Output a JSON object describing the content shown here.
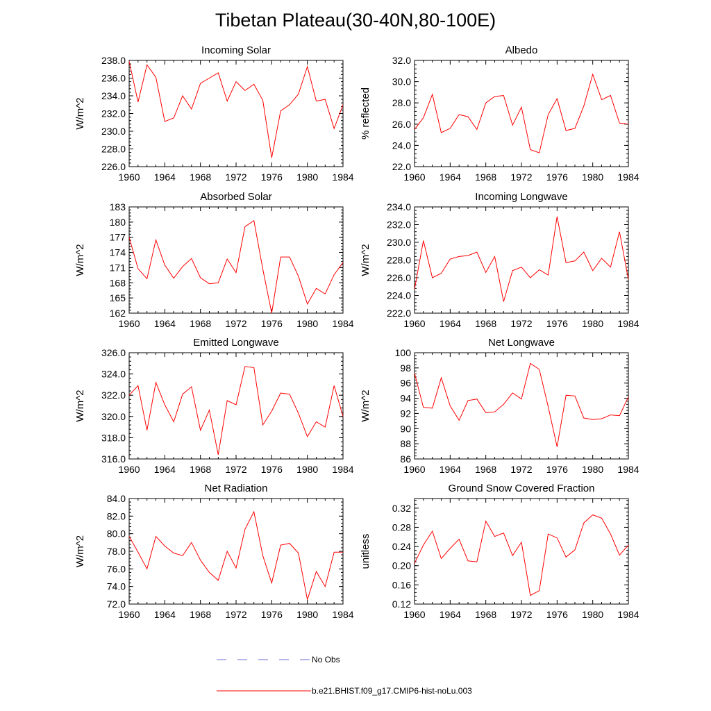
{
  "figure": {
    "title": "Tibetan Plateau(30-40N,80-100E)",
    "line_color": "#ff0000",
    "obs_color": "#6b6bd6"
  },
  "legend": {
    "obs_label": "No Obs",
    "model_label": "b.e21.BHIST.f09_g17.CMIP6-hist-noLu.003"
  },
  "chart_data": [
    {
      "type": "line",
      "title": "Incoming Solar",
      "ylabel": "W/m^2",
      "xlim": [
        1960,
        1984
      ],
      "ylim": [
        226,
        238
      ],
      "x_ticks": [
        "1960",
        "1964",
        "1968",
        "1972",
        "1976",
        "1980",
        "1984"
      ],
      "y_ticks": [
        "226.0",
        "228.0",
        "230.0",
        "232.0",
        "234.0",
        "236.0",
        "238.0"
      ],
      "x": [
        1960,
        1961,
        1962,
        1963,
        1964,
        1965,
        1966,
        1967,
        1968,
        1969,
        1970,
        1971,
        1972,
        1973,
        1974,
        1975,
        1976,
        1977,
        1978,
        1979,
        1980,
        1981,
        1982,
        1983,
        1984
      ],
      "values": [
        237.9,
        233.3,
        237.5,
        236.1,
        231.1,
        231.5,
        234.0,
        232.5,
        235.4,
        236.0,
        236.6,
        233.4,
        235.6,
        234.6,
        235.3,
        233.5,
        227.0,
        232.3,
        233.0,
        234.2,
        237.3,
        233.4,
        233.6,
        230.3,
        233.0
      ],
      "series": [
        {
          "name": "b.e21.BHIST.f09_g17.CMIP6-hist-noLu.003"
        }
      ]
    },
    {
      "type": "line",
      "title": "Albedo",
      "ylabel": "% reflected",
      "xlim": [
        1960,
        1984
      ],
      "ylim": [
        22,
        32
      ],
      "x_ticks": [
        "1960",
        "1964",
        "1968",
        "1972",
        "1976",
        "1980",
        "1984"
      ],
      "y_ticks": [
        "22.0",
        "24.0",
        "26.0",
        "28.0",
        "30.0",
        "32.0"
      ],
      "x": [
        1960,
        1961,
        1962,
        1963,
        1964,
        1965,
        1966,
        1967,
        1968,
        1969,
        1970,
        1971,
        1972,
        1973,
        1974,
        1975,
        1976,
        1977,
        1978,
        1979,
        1980,
        1981,
        1982,
        1983,
        1984
      ],
      "values": [
        25.5,
        26.6,
        28.8,
        25.2,
        25.6,
        26.9,
        26.7,
        25.5,
        28.0,
        28.6,
        28.7,
        25.9,
        27.6,
        23.6,
        23.3,
        26.9,
        28.4,
        25.4,
        25.6,
        27.7,
        30.7,
        28.3,
        28.7,
        26.1,
        26.0
      ],
      "series": [
        {
          "name": "b.e21.BHIST.f09_g17.CMIP6-hist-noLu.003"
        }
      ]
    },
    {
      "type": "line",
      "title": "Absorbed Solar",
      "ylabel": "W/m^2",
      "xlim": [
        1960,
        1984
      ],
      "ylim": [
        162,
        183
      ],
      "x_ticks": [
        "1960",
        "1964",
        "1968",
        "1972",
        "1976",
        "1980",
        "1984"
      ],
      "y_ticks": [
        "162",
        "165",
        "168",
        "171",
        "174",
        "177",
        "180",
        "183"
      ],
      "x": [
        1960,
        1961,
        1962,
        1963,
        1964,
        1965,
        1966,
        1967,
        1968,
        1969,
        1970,
        1971,
        1972,
        1973,
        1974,
        1975,
        1976,
        1977,
        1978,
        1979,
        1980,
        1981,
        1982,
        1983,
        1984
      ],
      "values": [
        177.0,
        170.8,
        168.8,
        176.5,
        171.5,
        168.9,
        171.2,
        172.8,
        169.0,
        167.8,
        168.0,
        172.7,
        170.0,
        179.1,
        180.3,
        170.7,
        162.0,
        173.1,
        173.1,
        169.3,
        163.8,
        166.9,
        165.8,
        169.6,
        172.0
      ],
      "series": [
        {
          "name": "b.e21.BHIST.f09_g17.CMIP6-hist-noLu.003"
        }
      ]
    },
    {
      "type": "line",
      "title": "Incoming Longwave",
      "ylabel": "W/m^2",
      "xlim": [
        1960,
        1984
      ],
      "ylim": [
        222,
        234
      ],
      "x_ticks": [
        "1960",
        "1964",
        "1968",
        "1972",
        "1976",
        "1980",
        "1984"
      ],
      "y_ticks": [
        "222.0",
        "224.0",
        "226.0",
        "228.0",
        "230.0",
        "232.0",
        "234.0"
      ],
      "x": [
        1960,
        1961,
        1962,
        1963,
        1964,
        1965,
        1966,
        1967,
        1968,
        1969,
        1970,
        1971,
        1972,
        1973,
        1974,
        1975,
        1976,
        1977,
        1978,
        1979,
        1980,
        1981,
        1982,
        1983,
        1984
      ],
      "values": [
        224.7,
        230.2,
        226.0,
        226.5,
        228.1,
        228.4,
        228.5,
        228.9,
        226.6,
        228.4,
        223.3,
        226.8,
        227.2,
        226.0,
        226.9,
        226.3,
        232.9,
        227.7,
        227.9,
        228.9,
        226.8,
        228.2,
        227.2,
        231.2,
        225.8
      ],
      "series": [
        {
          "name": "b.e21.BHIST.f09_g17.CMIP6-hist-noLu.003"
        }
      ]
    },
    {
      "type": "line",
      "title": "Emitted Longwave",
      "ylabel": "W/m^2",
      "xlim": [
        1960,
        1984
      ],
      "ylim": [
        316,
        326
      ],
      "x_ticks": [
        "1960",
        "1964",
        "1968",
        "1972",
        "1976",
        "1980",
        "1984"
      ],
      "y_ticks": [
        "316.0",
        "318.0",
        "320.0",
        "322.0",
        "324.0",
        "326.0"
      ],
      "x": [
        1960,
        1961,
        1962,
        1963,
        1964,
        1965,
        1966,
        1967,
        1968,
        1969,
        1970,
        1971,
        1972,
        1973,
        1974,
        1975,
        1976,
        1977,
        1978,
        1979,
        1980,
        1981,
        1982,
        1983,
        1984
      ],
      "values": [
        322.0,
        322.9,
        318.7,
        323.2,
        321.1,
        319.5,
        322.1,
        322.8,
        318.7,
        320.6,
        316.4,
        321.5,
        321.1,
        324.7,
        324.6,
        319.2,
        320.5,
        322.2,
        322.1,
        320.3,
        318.1,
        319.5,
        319.0,
        322.9,
        320.0
      ],
      "series": [
        {
          "name": "b.e21.BHIST.f09_g17.CMIP6-hist-noLu.003"
        }
      ]
    },
    {
      "type": "line",
      "title": "Net Longwave",
      "ylabel": "W/m^2",
      "xlim": [
        1960,
        1984
      ],
      "ylim": [
        86,
        100
      ],
      "x_ticks": [
        "1960",
        "1964",
        "1968",
        "1972",
        "1976",
        "1980",
        "1984"
      ],
      "y_ticks": [
        "86",
        "88",
        "90",
        "92",
        "94",
        "96",
        "98",
        "100"
      ],
      "x": [
        1960,
        1961,
        1962,
        1963,
        1964,
        1965,
        1966,
        1967,
        1968,
        1969,
        1970,
        1971,
        1972,
        1973,
        1974,
        1975,
        1976,
        1977,
        1978,
        1979,
        1980,
        1981,
        1982,
        1983,
        1984
      ],
      "values": [
        97.3,
        92.8,
        92.7,
        96.7,
        93.0,
        91.1,
        93.7,
        93.9,
        92.1,
        92.2,
        93.2,
        94.7,
        93.9,
        98.6,
        97.8,
        92.9,
        87.6,
        94.4,
        94.3,
        91.4,
        91.2,
        91.3,
        91.8,
        91.7,
        94.2
      ],
      "series": [
        {
          "name": "b.e21.BHIST.f09_g17.CMIP6-hist-noLu.003"
        }
      ]
    },
    {
      "type": "line",
      "title": "Net Radiation",
      "ylabel": "W/m^2",
      "xlim": [
        1960,
        1984
      ],
      "ylim": [
        72,
        84
      ],
      "x_ticks": [
        "1960",
        "1964",
        "1968",
        "1972",
        "1976",
        "1980",
        "1984"
      ],
      "y_ticks": [
        "72.0",
        "74.0",
        "76.0",
        "78.0",
        "80.0",
        "82.0",
        "84.0"
      ],
      "x": [
        1960,
        1961,
        1962,
        1963,
        1964,
        1965,
        1966,
        1967,
        1968,
        1969,
        1970,
        1971,
        1972,
        1973,
        1974,
        1975,
        1976,
        1977,
        1978,
        1979,
        1980,
        1981,
        1982,
        1983,
        1984
      ],
      "values": [
        79.7,
        77.9,
        76.0,
        79.7,
        78.6,
        77.8,
        77.5,
        79.0,
        77.0,
        75.6,
        74.7,
        78.0,
        76.1,
        80.5,
        82.5,
        77.5,
        74.4,
        78.7,
        78.9,
        77.8,
        72.5,
        75.7,
        74.0,
        77.9,
        77.9
      ],
      "series": [
        {
          "name": "b.e21.BHIST.f09_g17.CMIP6-hist-noLu.003"
        }
      ]
    },
    {
      "type": "line",
      "title": "Ground Snow Covered Fraction",
      "ylabel": "unitless",
      "xlim": [
        1960,
        1984
      ],
      "ylim": [
        0.12,
        0.34
      ],
      "x_ticks": [
        "1960",
        "1964",
        "1968",
        "1972",
        "1976",
        "1980",
        "1984"
      ],
      "y_ticks": [
        "0.12",
        "0.16",
        "0.20",
        "0.24",
        "0.28",
        "0.32"
      ],
      "x": [
        1960,
        1961,
        1962,
        1963,
        1964,
        1965,
        1966,
        1967,
        1968,
        1969,
        1970,
        1971,
        1972,
        1973,
        1974,
        1975,
        1976,
        1977,
        1978,
        1979,
        1980,
        1981,
        1982,
        1983,
        1984
      ],
      "values": [
        0.205,
        0.243,
        0.272,
        0.215,
        0.236,
        0.255,
        0.21,
        0.208,
        0.293,
        0.261,
        0.268,
        0.221,
        0.249,
        0.138,
        0.148,
        0.266,
        0.258,
        0.218,
        0.233,
        0.289,
        0.306,
        0.299,
        0.266,
        0.222,
        0.243
      ],
      "series": [
        {
          "name": "b.e21.BHIST.f09_g17.CMIP6-hist-noLu.003"
        }
      ]
    }
  ]
}
